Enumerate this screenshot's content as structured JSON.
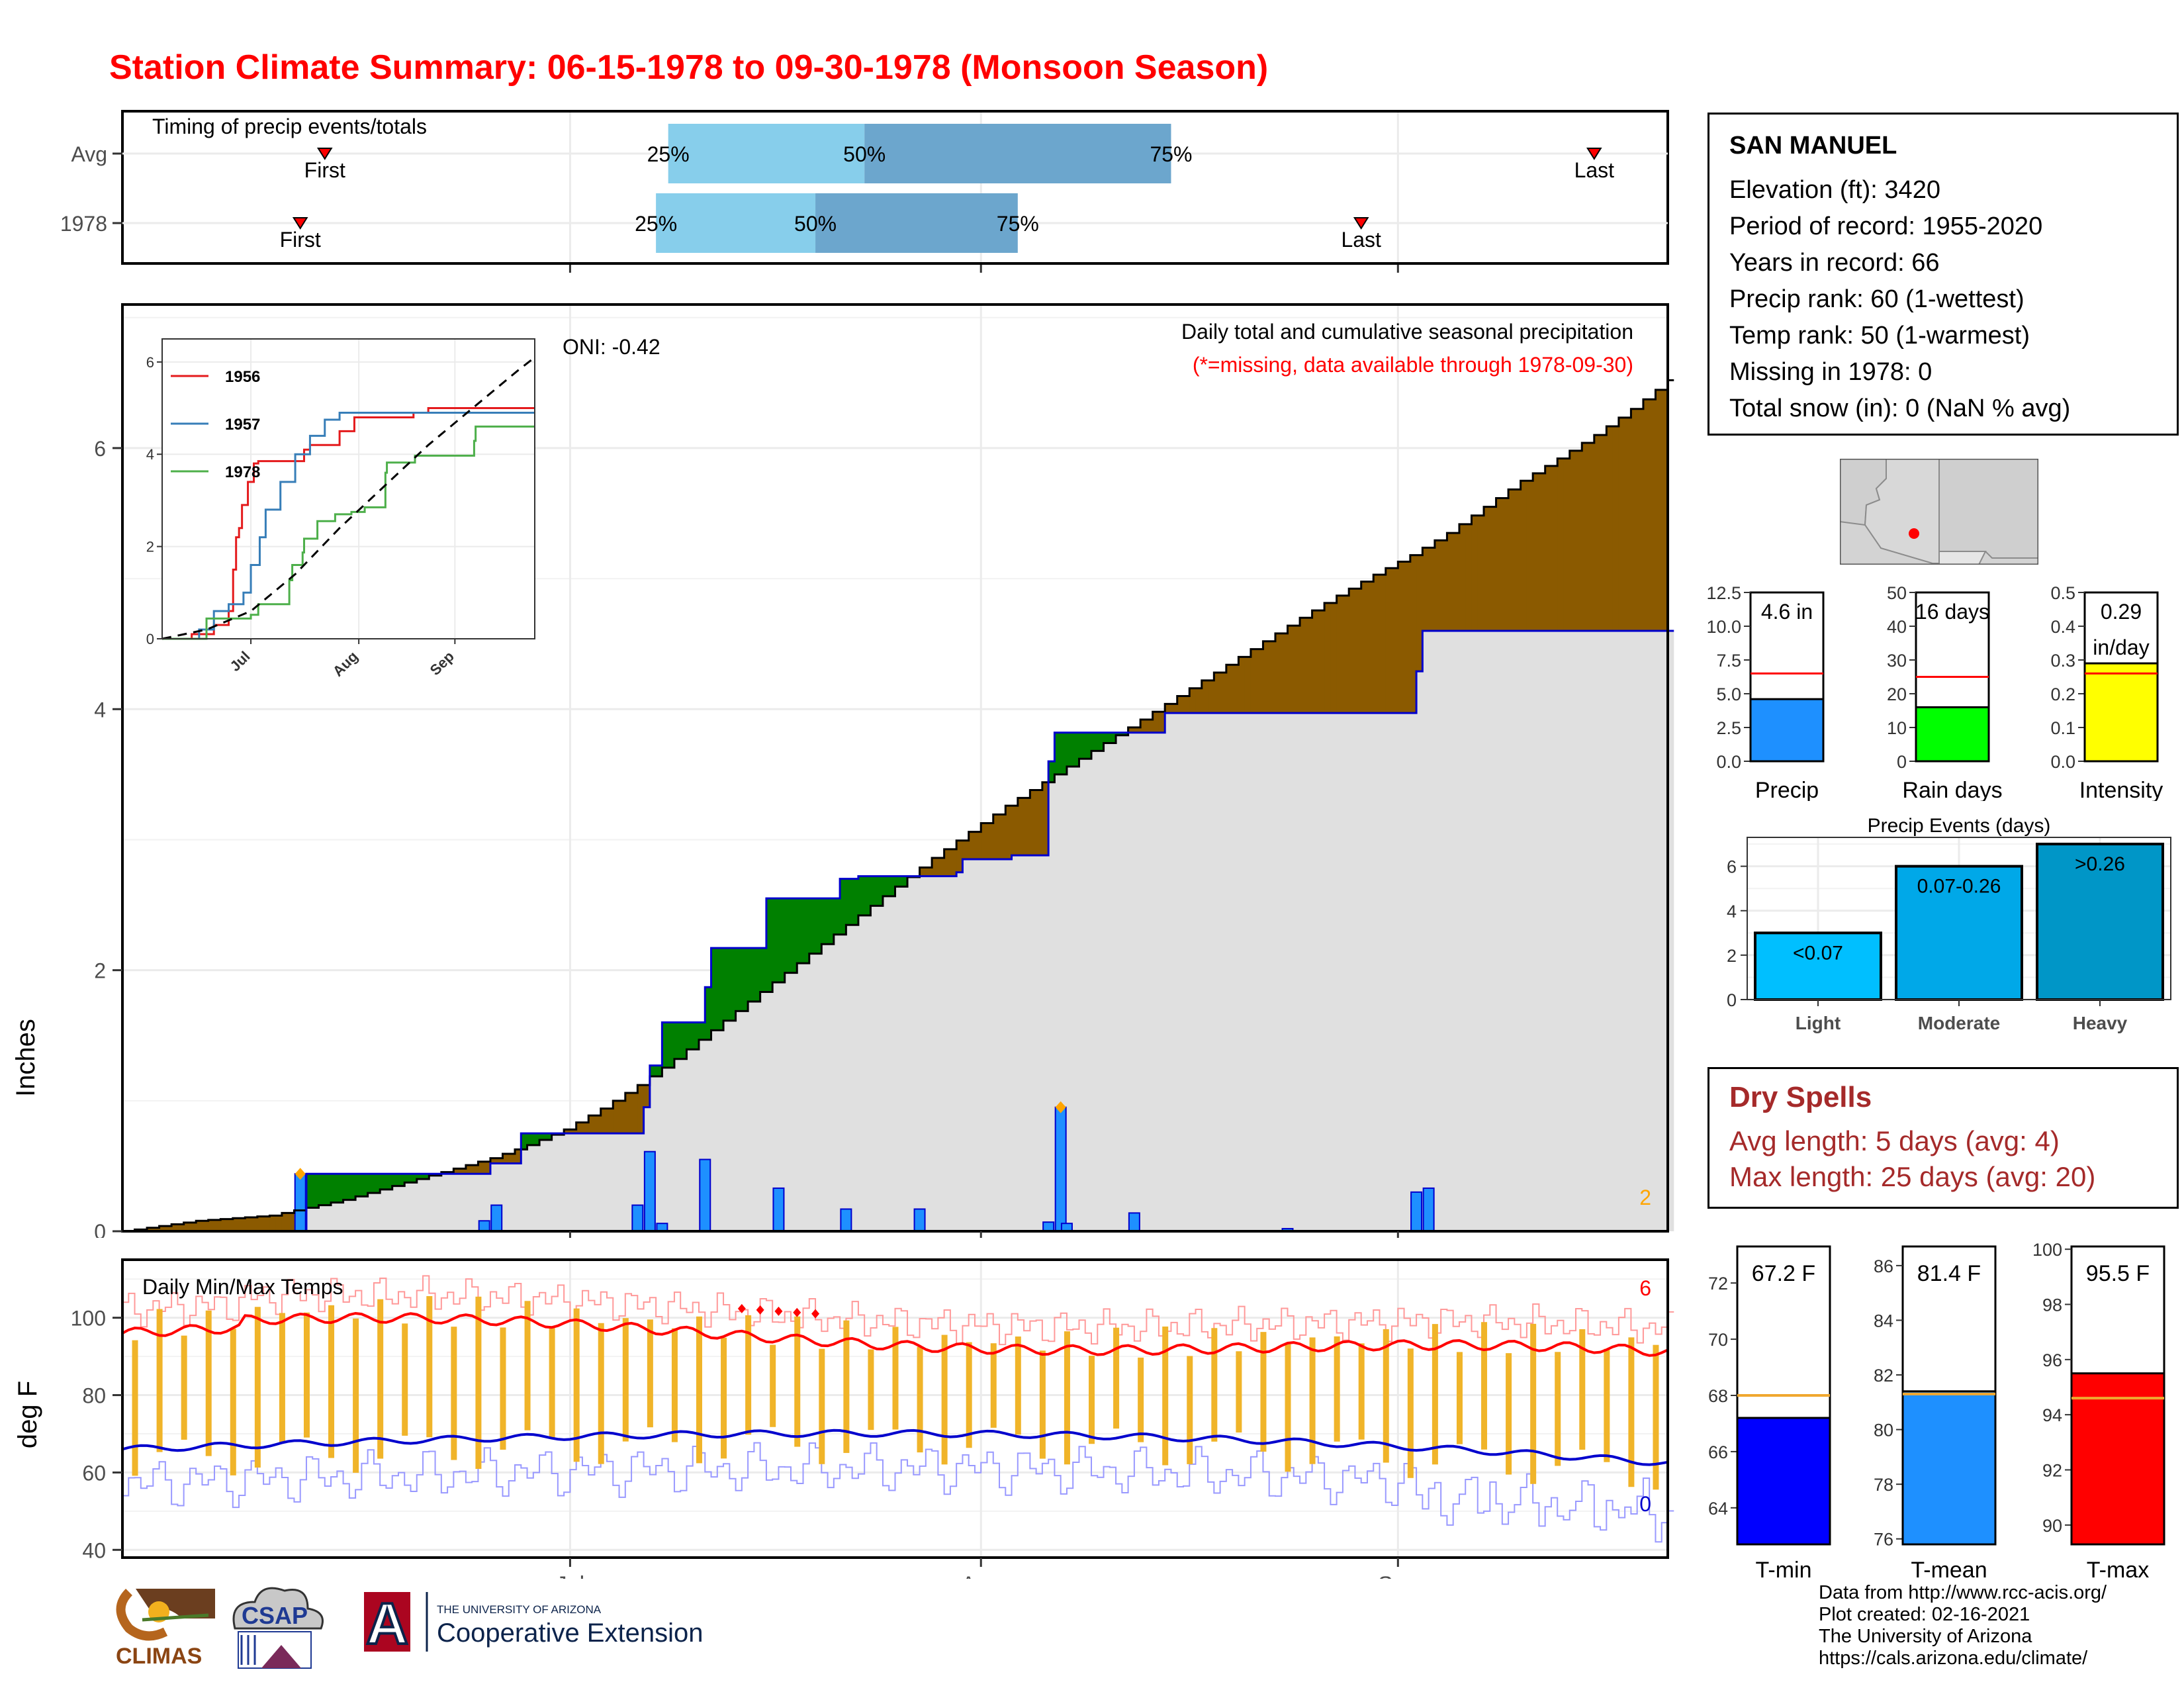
{
  "title": "Station Climate Summary: 06-15-1978 to 09-30-1978 (Monsoon Season)",
  "months": [
    "Jul",
    "Aug",
    "Sep"
  ],
  "timing": {
    "heading": "Timing of precip events/totals",
    "rows": [
      {
        "label": "Avg",
        "first_day": 33,
        "q25_day": 89,
        "q50_day": 121,
        "q75_day": 171,
        "last_day": 240,
        "color_light": "#87ceeb",
        "color_dark": "#6ca6cd"
      },
      {
        "label": "1978",
        "first_day": 29,
        "q25_day": 87,
        "q50_day": 113,
        "q75_day": 146,
        "last_day": 202,
        "color_light": "#87ceeb",
        "color_dark": "#6ca6cd"
      }
    ],
    "quartile_labels": [
      "25%",
      "50%",
      "75%"
    ],
    "first_label": "First",
    "last_label": "Last"
  },
  "chart_data": [
    {
      "type": "area",
      "name": "Daily total and cumulative seasonal precipitation",
      "title": "Daily total and cumulative seasonal precipitation",
      "subtitle": "(*=missing, data available through 1978-09-30)",
      "ylabel": "Inches",
      "ylim": [
        0,
        7.1
      ],
      "yticks": [
        0,
        2,
        4,
        6
      ],
      "oni_label": "ONI: -0.42",
      "corner_label": "2",
      "avg_cumulative": {
        "days": [
          0,
          6,
          12,
          18,
          24,
          30,
          36,
          42,
          48,
          54,
          60,
          66,
          72,
          78,
          84,
          90,
          96,
          102,
          108,
          114,
          120,
          126,
          132,
          138,
          144,
          150,
          156,
          162,
          168,
          174,
          180,
          186,
          192,
          198,
          204,
          210,
          216,
          222,
          228,
          234,
          240,
          246,
          252
        ],
        "values": [
          0.0,
          0.04,
          0.08,
          0.1,
          0.12,
          0.18,
          0.24,
          0.32,
          0.4,
          0.48,
          0.56,
          0.66,
          0.78,
          0.94,
          1.12,
          1.32,
          1.54,
          1.76,
          1.98,
          2.2,
          2.42,
          2.64,
          2.86,
          3.06,
          3.26,
          3.44,
          3.62,
          3.8,
          3.98,
          4.16,
          4.34,
          4.52,
          4.7,
          4.87,
          5.03,
          5.18,
          5.35,
          5.55,
          5.75,
          5.92,
          6.1,
          6.3,
          6.52
        ]
      },
      "year_cumulative": {
        "days": [
          0,
          29,
          30,
          55,
          60,
          65,
          84,
          85,
          86,
          88,
          94,
          95,
          96,
          104,
          105,
          110,
          111,
          116,
          117,
          120,
          128,
          136,
          137,
          140,
          145,
          150,
          151,
          152,
          153,
          160,
          170,
          171,
          180,
          200,
          210,
          211,
          212,
          252
        ],
        "values": [
          0.0,
          0.0,
          0.44,
          0.44,
          0.52,
          0.75,
          0.75,
          0.95,
          1.27,
          1.6,
          1.6,
          1.87,
          2.17,
          2.17,
          2.55,
          2.55,
          2.55,
          2.55,
          2.7,
          2.72,
          2.72,
          2.75,
          2.85,
          2.85,
          2.88,
          2.88,
          3.6,
          3.82,
          3.82,
          3.82,
          3.97,
          3.97,
          3.97,
          3.97,
          3.97,
          4.29,
          4.6,
          4.6
        ]
      },
      "daily_precip": {
        "days": [
          29,
          59,
          61,
          84,
          86,
          88,
          95,
          107,
          118,
          130,
          151,
          153,
          154,
          165,
          190,
          211,
          213
        ],
        "values": [
          0.44,
          0.08,
          0.2,
          0.2,
          0.61,
          0.06,
          0.55,
          0.33,
          0.17,
          0.17,
          0.07,
          0.95,
          0.06,
          0.14,
          0.02,
          0.3,
          0.33
        ]
      },
      "max_marks_days": [
        29,
        153
      ],
      "fill_above_color": "#8b5a00",
      "fill_below_color": "#008000",
      "base_fill_color": "#e0e0e0",
      "bar_color": "#1e90ff"
    },
    {
      "type": "line",
      "name": "inset cumulative comparison",
      "xticks": [
        "Jul",
        "Aug",
        "Sep"
      ],
      "yticks": [
        0,
        2,
        4,
        6
      ],
      "ylim": [
        0,
        6.5
      ],
      "series": [
        {
          "name": "1956",
          "color": "#e41a1c",
          "days": [
            0,
            20,
            35,
            45,
            48,
            50,
            52,
            54,
            58,
            62,
            65,
            70,
            90,
            96,
            100,
            110,
            120,
            130,
            170,
            180,
            252
          ],
          "values": [
            0,
            0.1,
            0.3,
            0.6,
            1.5,
            2.2,
            2.4,
            2.9,
            3.4,
            3.8,
            3.85,
            3.85,
            3.85,
            4.1,
            4.2,
            4.2,
            4.5,
            4.8,
            4.9,
            5.0,
            5.0
          ]
        },
        {
          "name": "1957",
          "color": "#377eb8",
          "days": [
            0,
            25,
            35,
            45,
            55,
            60,
            66,
            70,
            80,
            90,
            100,
            110,
            120,
            252
          ],
          "values": [
            0,
            0.2,
            0.6,
            0.75,
            1.0,
            1.6,
            2.2,
            2.8,
            3.4,
            4.0,
            4.4,
            4.75,
            4.9,
            4.9
          ]
        },
        {
          "name": "1978",
          "color": "#4daf4a",
          "days": [
            0,
            29,
            30,
            55,
            60,
            65,
            84,
            86,
            88,
            95,
            96,
            105,
            110,
            117,
            128,
            137,
            151,
            152,
            171,
            211,
            212,
            252
          ],
          "values": [
            0,
            0,
            0.44,
            0.44,
            0.52,
            0.75,
            0.75,
            1.27,
            1.6,
            1.87,
            2.17,
            2.55,
            2.55,
            2.7,
            2.75,
            2.85,
            3.6,
            3.82,
            3.97,
            4.29,
            4.6,
            4.6
          ]
        }
      ],
      "avg_dashed": {
        "days": [
          0,
          30,
          60,
          90,
          120,
          150,
          180,
          210,
          240,
          252
        ],
        "values": [
          0,
          0.2,
          0.6,
          1.4,
          2.4,
          3.3,
          4.2,
          5.0,
          5.8,
          6.1
        ]
      }
    },
    {
      "type": "bar",
      "name": "Precip",
      "value": 4.6,
      "avg": 6.5,
      "value_label": "4.6 in",
      "yticks": [
        "0.0",
        "2.5",
        "5.0",
        "7.5",
        "10.0",
        "12.5"
      ],
      "ylim": [
        0,
        12.5
      ],
      "color": "#1e90ff",
      "xlabel": "Precip"
    },
    {
      "type": "bar",
      "name": "Rain days",
      "value": 16,
      "avg": 25,
      "value_label": "16 days",
      "yticks": [
        "0",
        "10",
        "20",
        "30",
        "40",
        "50"
      ],
      "ylim": [
        0,
        50
      ],
      "color": "#00ff00",
      "xlabel": "Rain days"
    },
    {
      "type": "bar",
      "name": "Intensity",
      "value": 0.29,
      "avg": 0.26,
      "value_label": "0.29",
      "value_label2": "in/day",
      "yticks": [
        "0.0",
        "0.1",
        "0.2",
        "0.3",
        "0.4",
        "0.5"
      ],
      "ylim": [
        0,
        0.5
      ],
      "color": "#ffff00",
      "xlabel": "Intensity"
    },
    {
      "type": "bar",
      "name": "Precip Events (days)",
      "title": "Precip Events (days)",
      "categories": [
        "Light",
        "Moderate",
        "Heavy"
      ],
      "bar_labels": [
        "<0.07",
        "0.07-0.26",
        ">0.26"
      ],
      "values": [
        3,
        6,
        7
      ],
      "colors": [
        "#00bfff",
        "#00a8e8",
        "#0096c7"
      ],
      "yticks": [
        0,
        2,
        4,
        6
      ],
      "ylim": [
        0,
        7.3
      ]
    },
    {
      "type": "line",
      "name": "Daily Min/Max Temps",
      "title": "Daily Min/Max Temps",
      "ylabel": "deg F",
      "ylim": [
        38,
        115
      ],
      "yticks": [
        40,
        60,
        80,
        100
      ],
      "corner_max": "6",
      "corner_min": "0",
      "record_max_days": [
        101,
        104,
        107,
        110,
        113
      ],
      "avg_max_color": "#ff0000",
      "avg_min_color": "#0000cd",
      "bar_color": "#f0b429"
    },
    {
      "type": "bar",
      "name": "T-min",
      "value": 67.2,
      "avg": 68.0,
      "value_label": "67.2 F",
      "yticks": [
        64,
        66,
        68,
        70,
        72
      ],
      "ylim": [
        62.7,
        73.3
      ],
      "color": "#0000ff",
      "xlabel": "T-min"
    },
    {
      "type": "bar",
      "name": "T-mean",
      "value": 81.4,
      "avg": 81.3,
      "value_label": "81.4 F",
      "yticks": [
        76,
        78,
        80,
        82,
        84,
        86
      ],
      "ylim": [
        75.8,
        86.7
      ],
      "color": "#1e90ff",
      "xlabel": "T-mean"
    },
    {
      "type": "bar",
      "name": "T-max",
      "value": 95.5,
      "avg": 94.6,
      "value_label": "95.5 F",
      "yticks": [
        90,
        92,
        94,
        96,
        98,
        100
      ],
      "ylim": [
        89.3,
        100.1
      ],
      "color": "#ff0000",
      "xlabel": "T-max"
    }
  ],
  "station": {
    "name": "SAN MANUEL",
    "lines": [
      "Elevation (ft): 3420",
      "Period of record: 1955-2020",
      "Years in record: 66",
      "Precip rank: 60 (1-wettest)",
      "Temp rank: 50 (1-warmest)",
      "Missing in 1978: 0",
      "Total snow (in): 0 (NaN % avg)"
    ]
  },
  "dry_spells": {
    "heading": "Dry Spells",
    "lines": [
      "Avg length: 5 days (avg: 4)",
      "Max length: 25 days (avg: 20)"
    ]
  },
  "credits": [
    "Data from http://www.rcc-acis.org/",
    "Plot created: 02-16-2021",
    "The University of Arizona",
    "https://cals.arizona.edu/climate/"
  ],
  "logos": {
    "climas": "CLIMAS",
    "csap": "CSAP",
    "ua_line1": "THE UNIVERSITY OF ARIZONA",
    "ua_line2": "Cooperative Extension",
    "ua_letter": "A"
  }
}
